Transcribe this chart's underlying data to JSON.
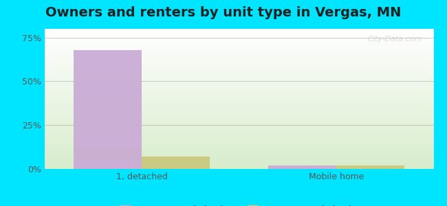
{
  "title": "Owners and renters by unit type in Vergas, MN",
  "categories": [
    "1, detached",
    "Mobile home"
  ],
  "owner_values": [
    68.0,
    2.0
  ],
  "renter_values": [
    7.0,
    2.0
  ],
  "owner_color": "#c9a8d4",
  "renter_color": "#c8c87a",
  "ylim": [
    0,
    80
  ],
  "yticks": [
    0,
    25,
    50,
    75
  ],
  "yticklabels": [
    "0%",
    "25%",
    "50%",
    "75%"
  ],
  "bar_width": 0.35,
  "outer_bg": "#00e5ff",
  "plot_bg_top": "#ffffff",
  "plot_bg_bottom": "#d8edcc",
  "grid_color": "#aaaaaa",
  "title_fontsize": 14,
  "tick_fontsize": 9,
  "legend_fontsize": 9,
  "watermark": "City-Data.com"
}
